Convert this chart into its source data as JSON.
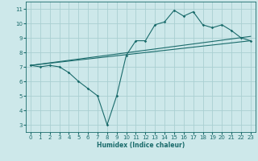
{
  "xlabel": "Humidex (Indice chaleur)",
  "xlim": [
    -0.5,
    23.5
  ],
  "ylim": [
    2.5,
    11.5
  ],
  "xticks": [
    0,
    1,
    2,
    3,
    4,
    5,
    6,
    7,
    8,
    9,
    10,
    11,
    12,
    13,
    14,
    15,
    16,
    17,
    18,
    19,
    20,
    21,
    22,
    23
  ],
  "yticks": [
    3,
    4,
    5,
    6,
    7,
    8,
    9,
    10,
    11
  ],
  "bg_color": "#cde8ea",
  "grid_color": "#aacfd2",
  "line_color": "#1a6b6b",
  "line1_x": [
    0,
    1,
    2,
    3,
    4,
    5,
    6,
    7,
    8,
    9,
    10,
    11,
    12,
    13,
    14,
    15,
    16,
    17,
    18,
    19,
    20,
    21,
    22,
    23
  ],
  "line1_y": [
    7.1,
    7.0,
    7.1,
    7.0,
    6.6,
    6.0,
    5.5,
    5.0,
    3.0,
    5.0,
    7.8,
    8.8,
    8.8,
    9.9,
    10.1,
    10.9,
    10.5,
    10.8,
    9.9,
    9.7,
    9.9,
    9.5,
    9.0,
    8.8
  ],
  "line2_x": [
    0,
    23
  ],
  "line2_y": [
    7.1,
    8.8
  ],
  "line3_x": [
    0,
    23
  ],
  "line3_y": [
    7.1,
    9.1
  ],
  "lw": 0.8,
  "ms": 1.8,
  "tick_fontsize": 5.0,
  "xlabel_fontsize": 5.5
}
